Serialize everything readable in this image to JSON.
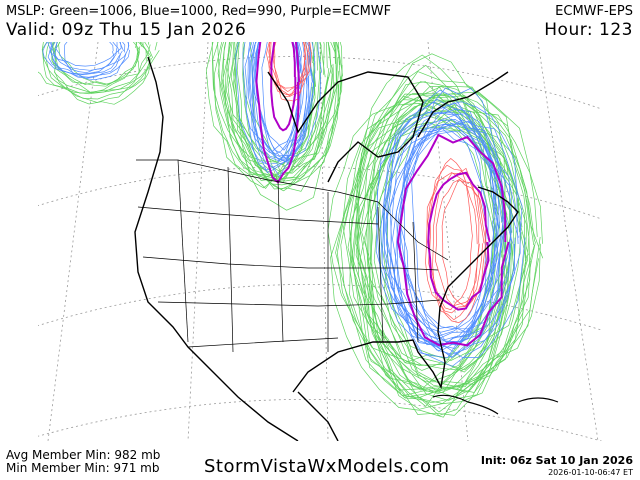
{
  "header": {
    "legend_line": "MSLP: Green=1006, Blue=1000, Red=990, Purple=ECMWF",
    "model": "ECMWF-EPS",
    "valid": "Valid: 09z Thu 15 Jan 2026",
    "hour": "Hour: 123"
  },
  "footer": {
    "avg_member_min": "Avg Member Min: 982 mb",
    "min_member_min": "Min Member Min: 971 mb",
    "brand": "StormVistaWxModels.com",
    "init": "Init: 06z Sat 10 Jan 2026",
    "generated": "2026-01-10-06:47 ET"
  },
  "colors": {
    "green": "#5fd35f",
    "blue": "#4f8cff",
    "red": "#ff5a5a",
    "purple": "#b000c8",
    "coast": "#000000",
    "grid": "#9a9a9a"
  },
  "contours": {
    "green_mb": 1006,
    "blue_mb": 1000,
    "red_mb": 990,
    "purple": "ECMWF"
  }
}
